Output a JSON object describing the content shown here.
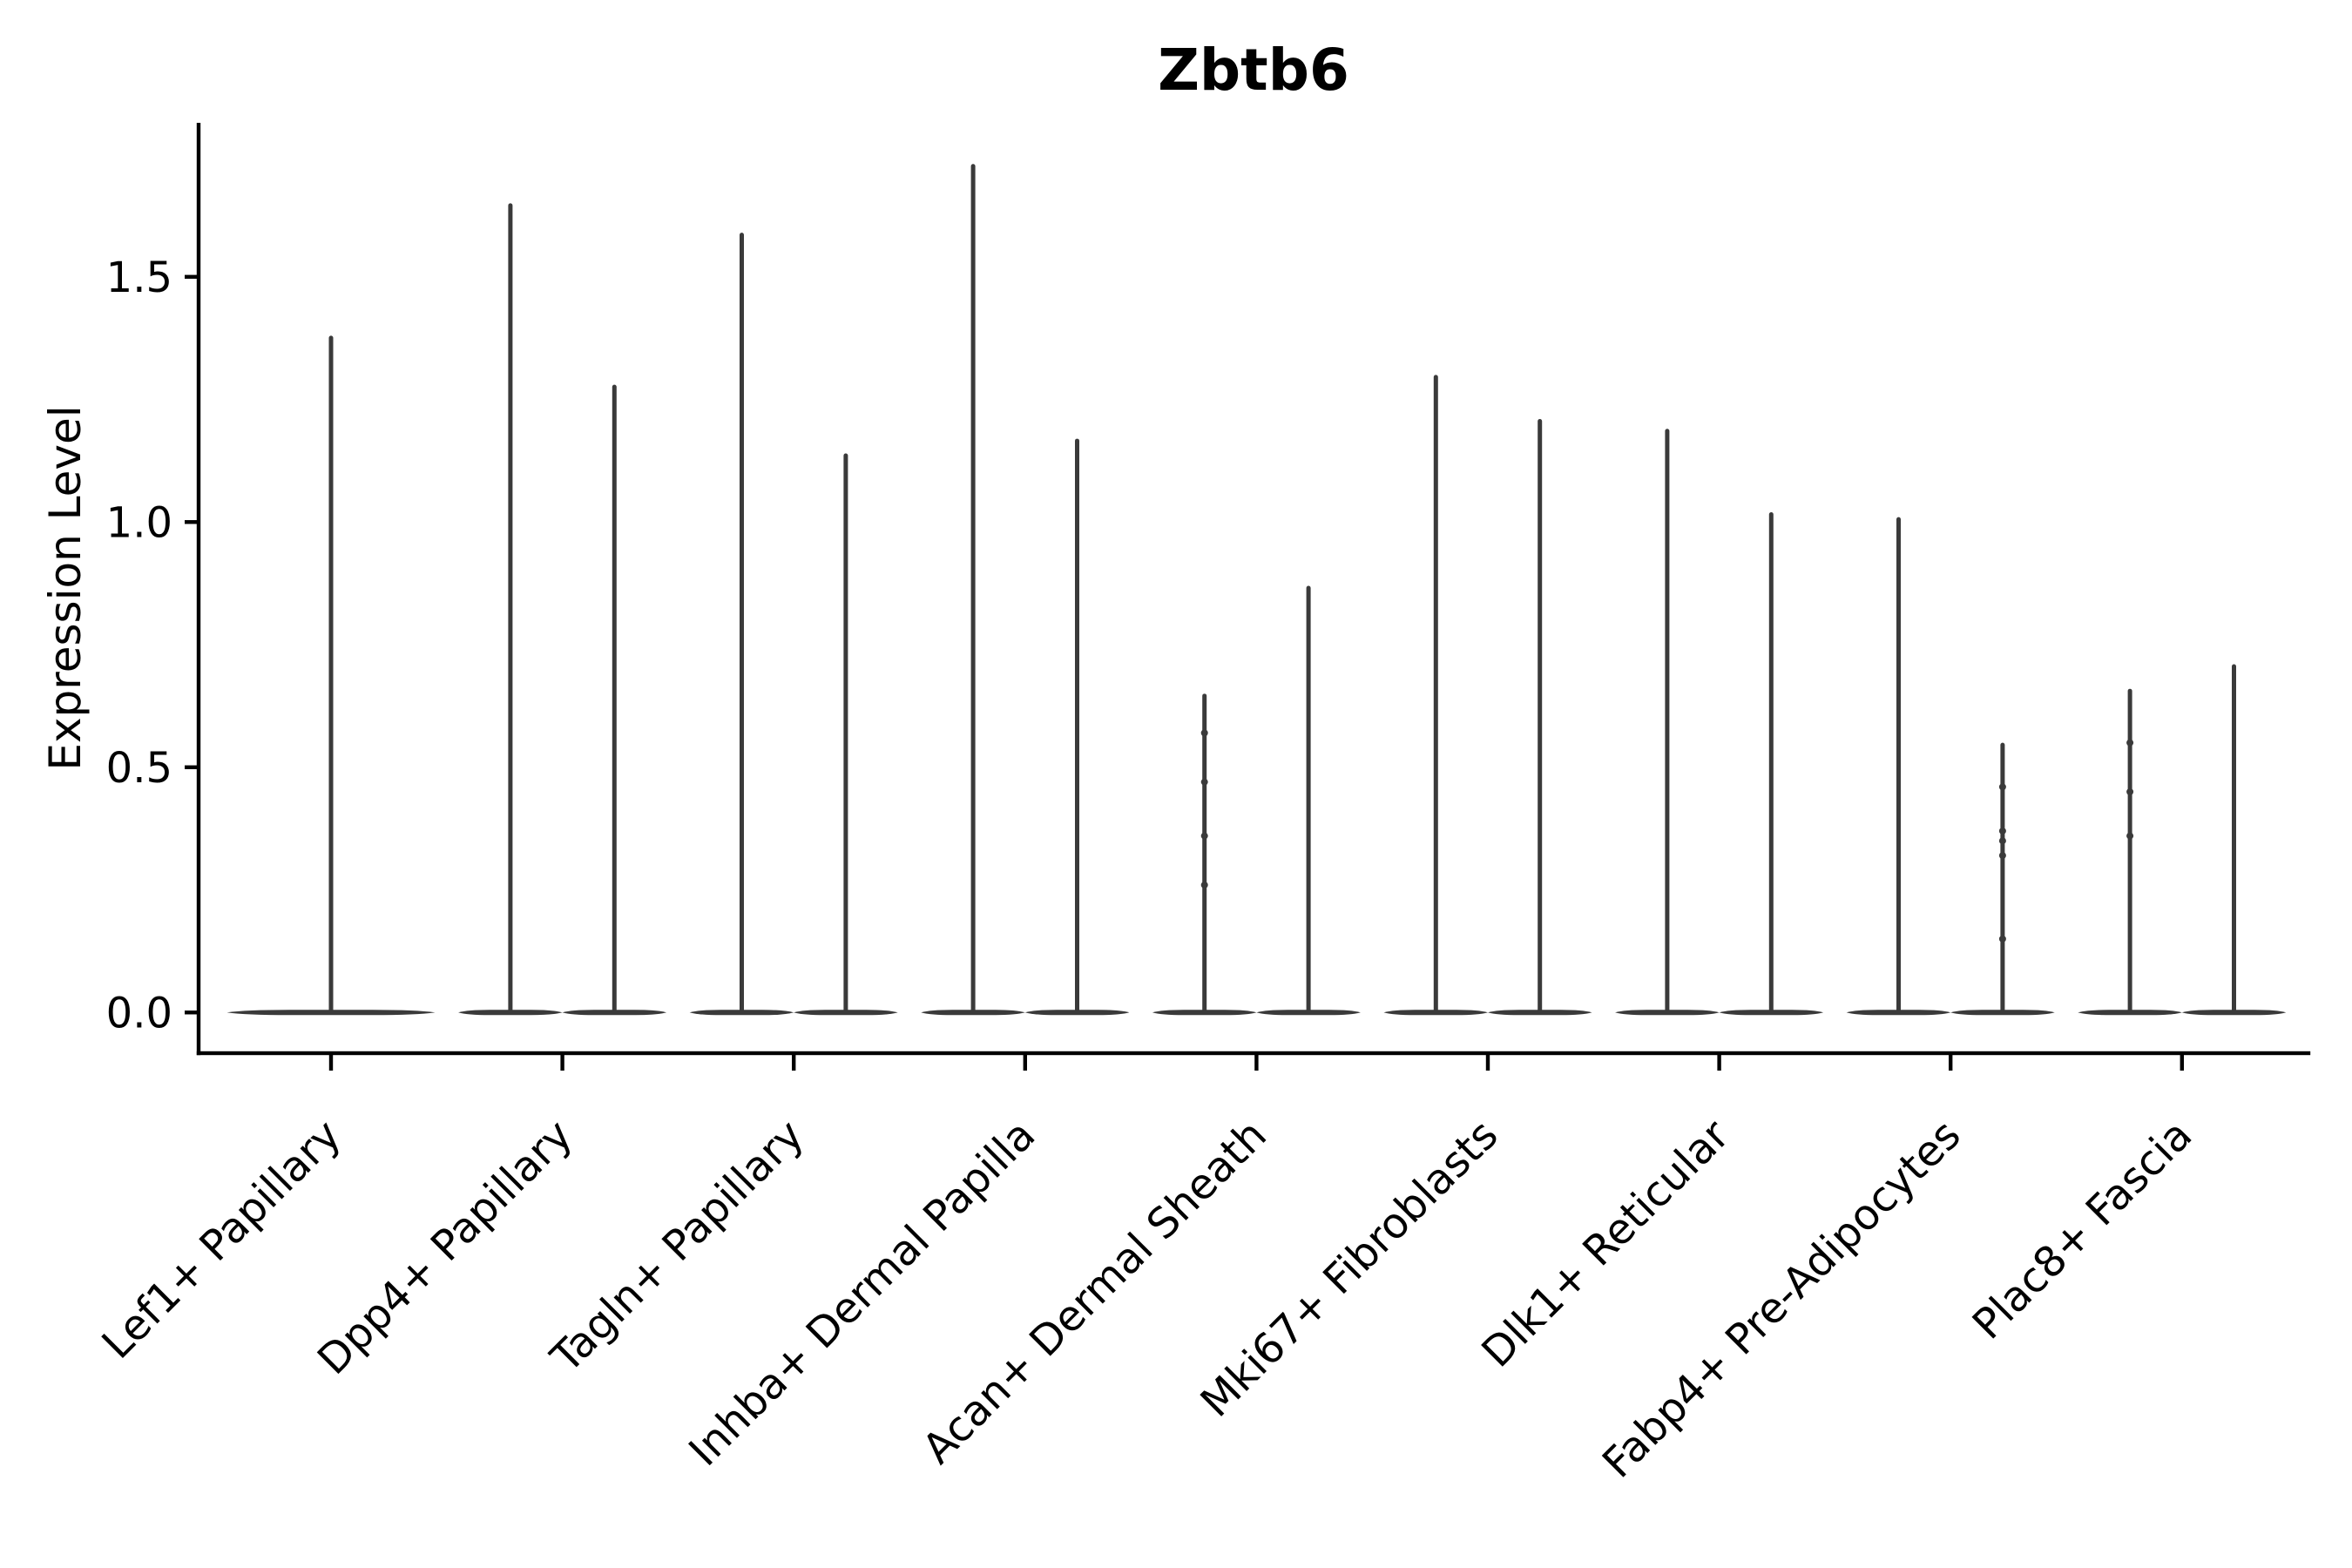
{
  "chart_data": {
    "type": "violin",
    "title": "Zbtb6",
    "xlabel": "",
    "ylabel": "Expression Level",
    "ylim": [
      -0.083,
      1.814
    ],
    "yticks": [
      0.0,
      0.5,
      1.0,
      1.5
    ],
    "ytick_labels": [
      "0.0",
      "0.5",
      "1.0",
      "1.5"
    ],
    "grid": false,
    "legend_position": "none",
    "categories": [
      "Lef1+ Papillary",
      "Dpp4+ Papillary",
      "Tagln+ Papillary",
      "Inhba+ Dermal Papilla",
      "Acan+ Dermal Sheath",
      "Mki67+ Fibroblasts",
      "Dlk1+ Reticular",
      "Fabp4+ Pre-Adipocytes",
      "Plac8+ Fascia"
    ],
    "description": "Needle-shaped violins: bulk of cells at expression 0 (flat wide base), thin spike up to the max expressing cell. Most categories contain two side-by-side violins; Lef1+ Papillary has a single full-width violin.",
    "baseline_value": 0.0,
    "violins": [
      {
        "category": "Lef1+ Papillary",
        "max_values": [
          1.38
        ],
        "dots": [
          []
        ]
      },
      {
        "category": "Dpp4+ Papillary",
        "max_values": [
          1.65,
          1.28
        ],
        "dots": [
          [],
          []
        ]
      },
      {
        "category": "Tagln+ Papillary",
        "max_values": [
          1.59,
          1.14
        ],
        "dots": [
          [],
          []
        ]
      },
      {
        "category": "Inhba+ Dermal Papilla",
        "max_values": [
          1.73,
          1.17
        ],
        "dots": [
          [],
          []
        ]
      },
      {
        "category": "Acan+ Dermal Sheath",
        "max_values": [
          0.65,
          0.87
        ],
        "dots": [
          [
            0.57,
            0.47,
            0.36,
            0.26
          ],
          []
        ]
      },
      {
        "category": "Mki67+ Fibroblasts",
        "max_values": [
          1.3,
          1.21
        ],
        "dots": [
          [],
          []
        ]
      },
      {
        "category": "Dlk1+ Reticular",
        "max_values": [
          1.19,
          1.02
        ],
        "dots": [
          [],
          []
        ]
      },
      {
        "category": "Fabp4+ Pre-Adipocytes",
        "max_values": [
          1.01,
          0.55
        ],
        "dots": [
          [],
          [
            0.46,
            0.37,
            0.35,
            0.32,
            0.15
          ]
        ]
      },
      {
        "category": "Plac8+ Fascia",
        "max_values": [
          0.66,
          0.71
        ],
        "dots": [
          [
            0.55,
            0.45,
            0.36
          ],
          []
        ]
      }
    ]
  },
  "style": {
    "violin_color": "#3a3a3a",
    "axis_color": "#000000",
    "text_color": "#000000",
    "background": "#ffffff"
  }
}
